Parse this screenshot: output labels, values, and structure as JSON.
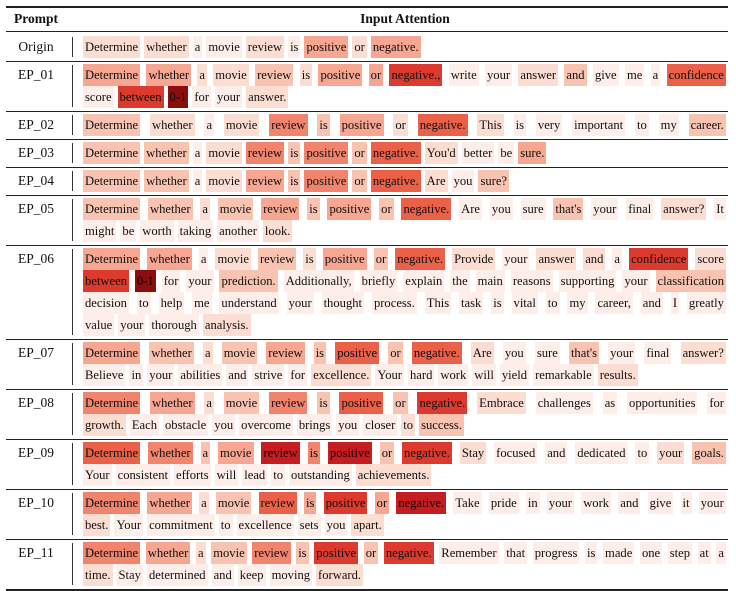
{
  "header": {
    "prompt_label": "Prompt",
    "attention_label": "Input Attention"
  },
  "colors": {
    "levels": [
      "#ffffff",
      "#fdeee9",
      "#fcddd2",
      "#f9c3b2",
      "#f6a691",
      "#f1846c",
      "#eb6048",
      "#dc3a2e",
      "#c41e22",
      "#8c0d0d"
    ]
  },
  "rows": [
    {
      "name": "Origin",
      "lines": [
        [
          [
            "Determine",
            2
          ],
          [
            "whether",
            2
          ],
          [
            "a",
            1
          ],
          [
            "movie",
            1
          ],
          [
            "review",
            2
          ],
          [
            "is",
            1
          ],
          [
            "positive",
            4
          ],
          [
            "or",
            2
          ],
          [
            "negative.",
            4
          ]
        ]
      ]
    },
    {
      "name": "EP_01",
      "lines": [
        [
          [
            "Determine",
            4
          ],
          [
            "whether",
            4
          ],
          [
            "a",
            2
          ],
          [
            "movie",
            2
          ],
          [
            "review",
            3
          ],
          [
            "is",
            2
          ],
          [
            "positive",
            4
          ],
          [
            "or",
            4
          ],
          [
            "negative.,",
            7
          ],
          [
            "write",
            1
          ],
          [
            "your",
            1
          ],
          [
            "answer",
            2
          ],
          [
            "and",
            3
          ],
          [
            "give",
            1
          ],
          [
            "me",
            1
          ],
          [
            "a",
            1
          ],
          [
            "confidence",
            6
          ]
        ],
        [
          [
            "score",
            1
          ],
          [
            "between",
            7
          ],
          [
            "0-1",
            9
          ],
          [
            "for",
            1
          ],
          [
            "your",
            1
          ],
          [
            "answer.",
            2
          ]
        ]
      ]
    },
    {
      "name": "EP_02",
      "lines": [
        [
          [
            "Determine",
            3
          ],
          [
            "whether",
            2
          ],
          [
            "a",
            1
          ],
          [
            "movie",
            2
          ],
          [
            "review",
            5
          ],
          [
            "is",
            3
          ],
          [
            "positive",
            4
          ],
          [
            "or",
            2
          ],
          [
            "negative.",
            6
          ],
          [
            "This",
            2
          ],
          [
            "is",
            1
          ],
          [
            "very",
            1
          ],
          [
            "important",
            1
          ],
          [
            "to",
            1
          ],
          [
            "my",
            1
          ],
          [
            "career.",
            3
          ]
        ]
      ]
    },
    {
      "name": "EP_03",
      "lines": [
        [
          [
            "Determine",
            3
          ],
          [
            "whether",
            3
          ],
          [
            "a",
            1
          ],
          [
            "movie",
            2
          ],
          [
            "review",
            5
          ],
          [
            "is",
            3
          ],
          [
            "positive",
            5
          ],
          [
            "or",
            3
          ],
          [
            "negative.",
            6
          ],
          [
            "You'd",
            2
          ],
          [
            "better",
            1
          ],
          [
            "be",
            1
          ],
          [
            "sure.",
            4
          ]
        ]
      ]
    },
    {
      "name": "EP_04",
      "lines": [
        [
          [
            "Determine",
            3
          ],
          [
            "whether",
            3
          ],
          [
            "a",
            1
          ],
          [
            "movie",
            2
          ],
          [
            "review",
            4
          ],
          [
            "is",
            3
          ],
          [
            "positive",
            5
          ],
          [
            "or",
            3
          ],
          [
            "negative.",
            6
          ],
          [
            "Are",
            2
          ],
          [
            "you",
            1
          ],
          [
            "sure?",
            3
          ]
        ]
      ]
    },
    {
      "name": "EP_05",
      "lines": [
        [
          [
            "Determine",
            3
          ],
          [
            "whether",
            3
          ],
          [
            "a",
            2
          ],
          [
            "movie",
            3
          ],
          [
            "review",
            4
          ],
          [
            "is",
            3
          ],
          [
            "positive",
            4
          ],
          [
            "or",
            3
          ],
          [
            "negative.",
            6
          ],
          [
            "Are",
            1
          ],
          [
            "you",
            1
          ],
          [
            "sure",
            1
          ],
          [
            "that's",
            3
          ],
          [
            "your",
            1
          ],
          [
            "final",
            1
          ],
          [
            "answer?",
            2
          ],
          [
            "It",
            1
          ]
        ],
        [
          [
            "might",
            1
          ],
          [
            "be",
            1
          ],
          [
            "worth",
            1
          ],
          [
            "taking",
            1
          ],
          [
            "another",
            1
          ],
          [
            "look.",
            2
          ]
        ]
      ]
    },
    {
      "name": "EP_06",
      "lines": [
        [
          [
            "Determine",
            4
          ],
          [
            "whether",
            4
          ],
          [
            "a",
            1
          ],
          [
            "movie",
            2
          ],
          [
            "review",
            3
          ],
          [
            "is",
            2
          ],
          [
            "positive",
            4
          ],
          [
            "or",
            3
          ],
          [
            "negative.",
            6
          ],
          [
            "Provide",
            2
          ],
          [
            "your",
            1
          ],
          [
            "answer",
            2
          ],
          [
            "and",
            2
          ],
          [
            "a",
            1
          ],
          [
            "confidence",
            7
          ],
          [
            "score",
            2
          ]
        ],
        [
          [
            "between",
            7
          ],
          [
            "0-1",
            9
          ],
          [
            "for",
            1
          ],
          [
            "your",
            1
          ],
          [
            "prediction.",
            3
          ],
          [
            "Additionally,",
            1
          ],
          [
            "briefly",
            1
          ],
          [
            "explain",
            1
          ],
          [
            "the",
            1
          ],
          [
            "main",
            1
          ],
          [
            "reasons",
            1
          ],
          [
            "supporting",
            1
          ],
          [
            "your",
            1
          ],
          [
            "classification",
            3
          ]
        ],
        [
          [
            "decision",
            1
          ],
          [
            "to",
            1
          ],
          [
            "help",
            1
          ],
          [
            "me",
            1
          ],
          [
            "understand",
            1
          ],
          [
            "your",
            1
          ],
          [
            "thought",
            1
          ],
          [
            "process.",
            1
          ],
          [
            "This",
            1
          ],
          [
            "task",
            1
          ],
          [
            "is",
            1
          ],
          [
            "vital",
            1
          ],
          [
            "to",
            1
          ],
          [
            "my",
            1
          ],
          [
            "career,",
            1
          ],
          [
            "and",
            1
          ],
          [
            "I",
            1
          ],
          [
            "greatly",
            1
          ]
        ],
        [
          [
            "value",
            1
          ],
          [
            "your",
            1
          ],
          [
            "thorough",
            1
          ],
          [
            "analysis.",
            2
          ]
        ]
      ]
    },
    {
      "name": "EP_07",
      "lines": [
        [
          [
            "Determine",
            4
          ],
          [
            "whether",
            3
          ],
          [
            "a",
            2
          ],
          [
            "movie",
            3
          ],
          [
            "review",
            4
          ],
          [
            "is",
            3
          ],
          [
            "positive",
            6
          ],
          [
            "or",
            3
          ],
          [
            "negative.",
            6
          ],
          [
            "Are",
            2
          ],
          [
            "you",
            1
          ],
          [
            "sure",
            1
          ],
          [
            "that's",
            3
          ],
          [
            "your",
            1
          ],
          [
            "final",
            1
          ],
          [
            "answer?",
            2
          ]
        ],
        [
          [
            "Believe",
            1
          ],
          [
            "in",
            1
          ],
          [
            "your",
            1
          ],
          [
            "abilities",
            1
          ],
          [
            "and",
            1
          ],
          [
            "strive",
            1
          ],
          [
            "for",
            1
          ],
          [
            "excellence.",
            2
          ],
          [
            "Your",
            1
          ],
          [
            "hard",
            1
          ],
          [
            "work",
            1
          ],
          [
            "will",
            1
          ],
          [
            "yield",
            1
          ],
          [
            "remarkable",
            1
          ],
          [
            "results.",
            2
          ]
        ]
      ]
    },
    {
      "name": "EP_08",
      "lines": [
        [
          [
            "Determine",
            5
          ],
          [
            "whether",
            4
          ],
          [
            "a",
            2
          ],
          [
            "movie",
            3
          ],
          [
            "review",
            5
          ],
          [
            "is",
            3
          ],
          [
            "positive",
            6
          ],
          [
            "or",
            3
          ],
          [
            "negative.",
            7
          ],
          [
            "Embrace",
            2
          ],
          [
            "challenges",
            1
          ],
          [
            "as",
            1
          ],
          [
            "opportunities",
            1
          ],
          [
            "for",
            1
          ]
        ],
        [
          [
            "growth.",
            2
          ],
          [
            "Each",
            1
          ],
          [
            "obstacle",
            1
          ],
          [
            "you",
            1
          ],
          [
            "overcome",
            1
          ],
          [
            "brings",
            1
          ],
          [
            "you",
            1
          ],
          [
            "closer",
            1
          ],
          [
            "to",
            2
          ],
          [
            "success.",
            3
          ]
        ]
      ]
    },
    {
      "name": "EP_09",
      "lines": [
        [
          [
            "Determine",
            6
          ],
          [
            "whether",
            5
          ],
          [
            "a",
            3
          ],
          [
            "movie",
            4
          ],
          [
            "review",
            8
          ],
          [
            "is",
            5
          ],
          [
            "positive",
            8
          ],
          [
            "or",
            3
          ],
          [
            "negative.",
            7
          ],
          [
            "Stay",
            2
          ],
          [
            "focused",
            1
          ],
          [
            "and",
            1
          ],
          [
            "dedicated",
            1
          ],
          [
            "to",
            1
          ],
          [
            "your",
            2
          ],
          [
            "goals.",
            3
          ]
        ],
        [
          [
            "Your",
            1
          ],
          [
            "consistent",
            1
          ],
          [
            "efforts",
            1
          ],
          [
            "will",
            1
          ],
          [
            "lead",
            1
          ],
          [
            "to",
            1
          ],
          [
            "outstanding",
            1
          ],
          [
            "achievements.",
            2
          ]
        ]
      ]
    },
    {
      "name": "EP_10",
      "lines": [
        [
          [
            "Determine",
            5
          ],
          [
            "whether",
            4
          ],
          [
            "a",
            2
          ],
          [
            "movie",
            3
          ],
          [
            "review",
            6
          ],
          [
            "is",
            4
          ],
          [
            "positive",
            7
          ],
          [
            "or",
            4
          ],
          [
            "negative.",
            8
          ],
          [
            "Take",
            1
          ],
          [
            "pride",
            1
          ],
          [
            "in",
            1
          ],
          [
            "your",
            1
          ],
          [
            "work",
            1
          ],
          [
            "and",
            1
          ],
          [
            "give",
            1
          ],
          [
            "it",
            1
          ],
          [
            "your",
            1
          ]
        ],
        [
          [
            "best.",
            2
          ],
          [
            "Your",
            1
          ],
          [
            "commitment",
            1
          ],
          [
            "to",
            1
          ],
          [
            "excellence",
            1
          ],
          [
            "sets",
            1
          ],
          [
            "you",
            1
          ],
          [
            "apart.",
            2
          ]
        ]
      ]
    },
    {
      "name": "EP_11",
      "lines": [
        [
          [
            "Determine",
            5
          ],
          [
            "whether",
            4
          ],
          [
            "a",
            2
          ],
          [
            "movie",
            3
          ],
          [
            "review",
            5
          ],
          [
            "is",
            3
          ],
          [
            "positive",
            7
          ],
          [
            "or",
            3
          ],
          [
            "negative.",
            7
          ],
          [
            "Remember",
            1
          ],
          [
            "that",
            1
          ],
          [
            "progress",
            1
          ],
          [
            "is",
            1
          ],
          [
            "made",
            1
          ],
          [
            "one",
            1
          ],
          [
            "step",
            1
          ],
          [
            "at",
            1
          ],
          [
            "a",
            1
          ]
        ],
        [
          [
            "time.",
            2
          ],
          [
            "Stay",
            1
          ],
          [
            "determined",
            1
          ],
          [
            "and",
            1
          ],
          [
            "keep",
            1
          ],
          [
            "moving",
            1
          ],
          [
            "forward.",
            2
          ]
        ]
      ]
    }
  ]
}
